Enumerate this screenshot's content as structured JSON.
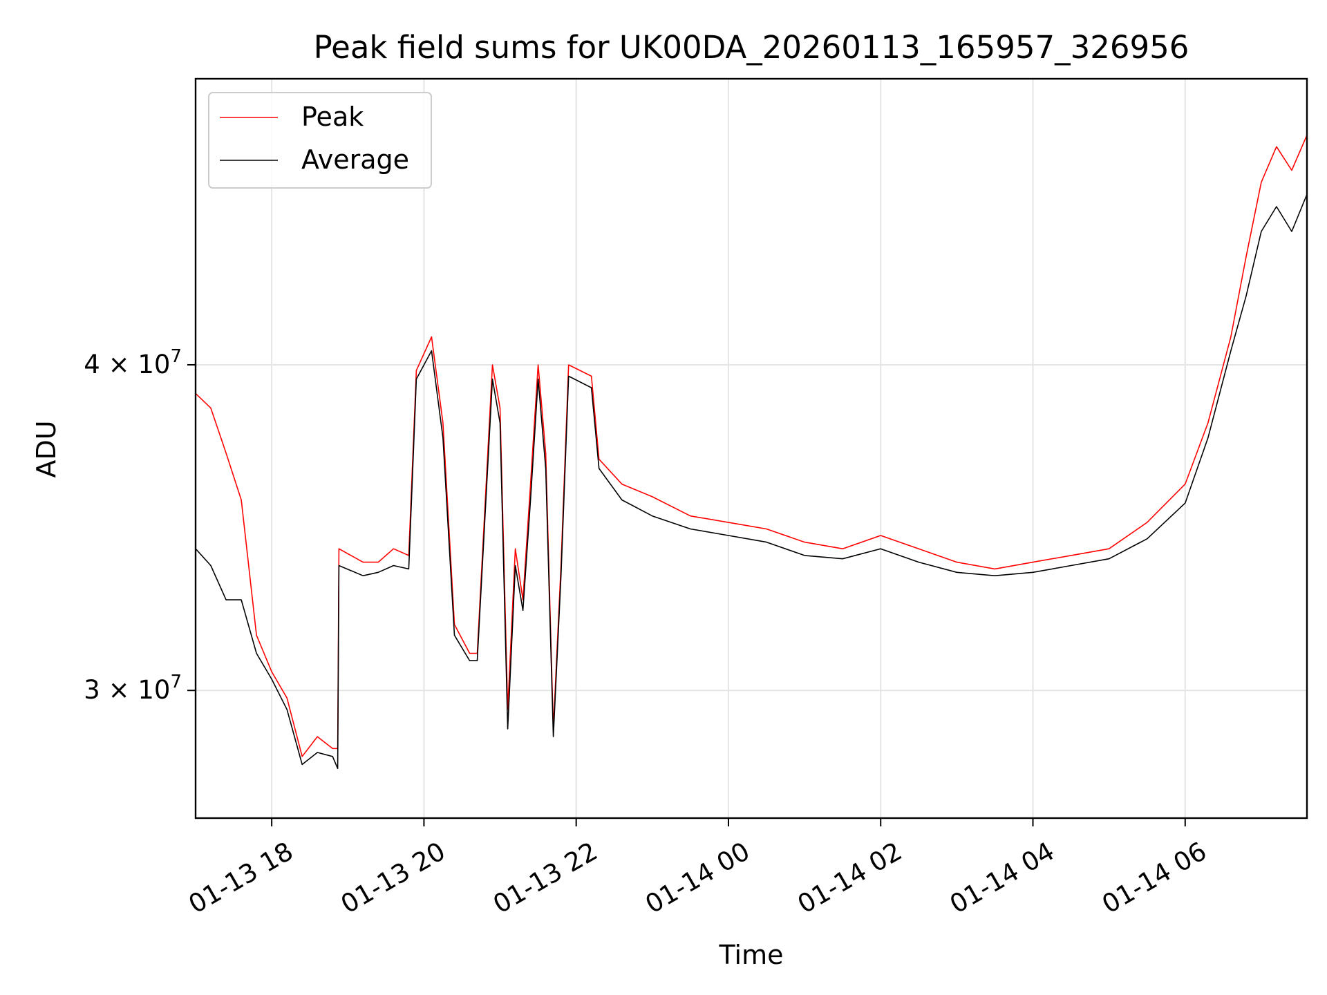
{
  "chart_data": {
    "type": "line",
    "title": "Peak field sums for UK00DA_20260113_165957_326956",
    "xlabel": "Time",
    "ylabel": "ADU",
    "y_scale": "log",
    "ylim": [
      26800000,
      51500000
    ],
    "xlim": [
      "01-13 17:00",
      "01-14 07:36"
    ],
    "grid": true,
    "legend_position": "top-left",
    "x_ticks": [
      {
        "t": "01-13 18:00",
        "label": "01-13 18"
      },
      {
        "t": "01-13 20:00",
        "label": "01-13 20"
      },
      {
        "t": "01-13 22:00",
        "label": "01-13 22"
      },
      {
        "t": "01-14 00:00",
        "label": "01-14 00"
      },
      {
        "t": "01-14 02:00",
        "label": "01-14 02"
      },
      {
        "t": "01-14 04:00",
        "label": "01-14 04"
      },
      {
        "t": "01-14 06:00",
        "label": "01-14 06"
      }
    ],
    "y_ticks": [
      {
        "value": 30000000,
        "mantissa": "3",
        "base": "10",
        "exponent": "7"
      },
      {
        "value": 40000000,
        "mantissa": "4",
        "base": "10",
        "exponent": "7"
      }
    ],
    "series": [
      {
        "name": "Peak",
        "color": "#ff0000",
        "points": [
          [
            "01-13 17:00",
            39000000
          ],
          [
            "01-13 17:12",
            38500000
          ],
          [
            "01-13 17:24",
            37000000
          ],
          [
            "01-13 17:36",
            35500000
          ],
          [
            "01-13 17:48",
            31500000
          ],
          [
            "01-13 18:00",
            30500000
          ],
          [
            "01-13 18:12",
            29800000
          ],
          [
            "01-13 18:24",
            28300000
          ],
          [
            "01-13 18:36",
            28800000
          ],
          [
            "01-13 18:48",
            28500000
          ],
          [
            "01-13 18:52",
            28500000
          ],
          [
            "01-13 18:53",
            34000000
          ],
          [
            "01-13 19:12",
            33600000
          ],
          [
            "01-13 19:24",
            33600000
          ],
          [
            "01-13 19:36",
            34000000
          ],
          [
            "01-13 19:48",
            33800000
          ],
          [
            "01-13 19:54",
            39800000
          ],
          [
            "01-13 20:06",
            41000000
          ],
          [
            "01-13 20:15",
            38000000
          ],
          [
            "01-13 20:24",
            31800000
          ],
          [
            "01-13 20:36",
            31000000
          ],
          [
            "01-13 20:42",
            31000000
          ],
          [
            "01-13 20:54",
            40000000
          ],
          [
            "01-13 21:00",
            38500000
          ],
          [
            "01-13 21:06",
            29500000
          ],
          [
            "01-13 21:12",
            34000000
          ],
          [
            "01-13 21:18",
            32500000
          ],
          [
            "01-13 21:24",
            36000000
          ],
          [
            "01-13 21:30",
            40000000
          ],
          [
            "01-13 21:36",
            37000000
          ],
          [
            "01-13 21:42",
            29000000
          ],
          [
            "01-13 21:48",
            33500000
          ],
          [
            "01-13 21:54",
            40000000
          ],
          [
            "01-13 22:12",
            39600000
          ],
          [
            "01-13 22:18",
            36800000
          ],
          [
            "01-13 22:36",
            36000000
          ],
          [
            "01-13 23:00",
            35600000
          ],
          [
            "01-13 23:30",
            35000000
          ],
          [
            "01-14 00:00",
            34800000
          ],
          [
            "01-14 00:30",
            34600000
          ],
          [
            "01-14 01:00",
            34200000
          ],
          [
            "01-14 01:30",
            34000000
          ],
          [
            "01-14 02:00",
            34400000
          ],
          [
            "01-14 02:30",
            34000000
          ],
          [
            "01-14 03:00",
            33600000
          ],
          [
            "01-14 03:30",
            33400000
          ],
          [
            "01-14 04:00",
            33600000
          ],
          [
            "01-14 04:30",
            33800000
          ],
          [
            "01-14 05:00",
            34000000
          ],
          [
            "01-14 05:30",
            34800000
          ],
          [
            "01-14 06:00",
            36000000
          ],
          [
            "01-14 06:18",
            38000000
          ],
          [
            "01-14 06:36",
            41000000
          ],
          [
            "01-14 06:48",
            44000000
          ],
          [
            "01-14 07:00",
            47000000
          ],
          [
            "01-14 07:12",
            48500000
          ],
          [
            "01-14 07:24",
            47500000
          ],
          [
            "01-14 07:36",
            49000000
          ]
        ]
      },
      {
        "name": "Average",
        "color": "#000000",
        "points": [
          [
            "01-13 17:00",
            34000000
          ],
          [
            "01-13 17:12",
            33500000
          ],
          [
            "01-13 17:24",
            32500000
          ],
          [
            "01-13 17:36",
            32500000
          ],
          [
            "01-13 17:48",
            31000000
          ],
          [
            "01-13 18:00",
            30300000
          ],
          [
            "01-13 18:12",
            29500000
          ],
          [
            "01-13 18:24",
            28100000
          ],
          [
            "01-13 18:36",
            28400000
          ],
          [
            "01-13 18:48",
            28300000
          ],
          [
            "01-13 18:52",
            28000000
          ],
          [
            "01-13 18:53",
            33500000
          ],
          [
            "01-13 19:12",
            33200000
          ],
          [
            "01-13 19:24",
            33300000
          ],
          [
            "01-13 19:36",
            33500000
          ],
          [
            "01-13 19:48",
            33400000
          ],
          [
            "01-13 19:54",
            39500000
          ],
          [
            "01-13 20:06",
            40500000
          ],
          [
            "01-13 20:15",
            37500000
          ],
          [
            "01-13 20:24",
            31500000
          ],
          [
            "01-13 20:36",
            30800000
          ],
          [
            "01-13 20:42",
            30800000
          ],
          [
            "01-13 20:54",
            39500000
          ],
          [
            "01-13 21:00",
            38000000
          ],
          [
            "01-13 21:06",
            29000000
          ],
          [
            "01-13 21:12",
            33500000
          ],
          [
            "01-13 21:18",
            32200000
          ],
          [
            "01-13 21:24",
            35500000
          ],
          [
            "01-13 21:30",
            39500000
          ],
          [
            "01-13 21:36",
            36500000
          ],
          [
            "01-13 21:42",
            28800000
          ],
          [
            "01-13 21:48",
            33200000
          ],
          [
            "01-13 21:54",
            39600000
          ],
          [
            "01-13 22:12",
            39200000
          ],
          [
            "01-13 22:18",
            36500000
          ],
          [
            "01-13 22:36",
            35500000
          ],
          [
            "01-13 23:00",
            35000000
          ],
          [
            "01-13 23:30",
            34600000
          ],
          [
            "01-14 00:00",
            34400000
          ],
          [
            "01-14 00:30",
            34200000
          ],
          [
            "01-14 01:00",
            33800000
          ],
          [
            "01-14 01:30",
            33700000
          ],
          [
            "01-14 02:00",
            34000000
          ],
          [
            "01-14 02:30",
            33600000
          ],
          [
            "01-14 03:00",
            33300000
          ],
          [
            "01-14 03:30",
            33200000
          ],
          [
            "01-14 04:00",
            33300000
          ],
          [
            "01-14 04:30",
            33500000
          ],
          [
            "01-14 05:00",
            33700000
          ],
          [
            "01-14 05:30",
            34300000
          ],
          [
            "01-14 06:00",
            35400000
          ],
          [
            "01-14 06:18",
            37500000
          ],
          [
            "01-14 06:36",
            40500000
          ],
          [
            "01-14 06:48",
            42500000
          ],
          [
            "01-14 07:00",
            45000000
          ],
          [
            "01-14 07:12",
            46000000
          ],
          [
            "01-14 07:24",
            45000000
          ],
          [
            "01-14 07:36",
            46500000
          ]
        ]
      }
    ]
  }
}
